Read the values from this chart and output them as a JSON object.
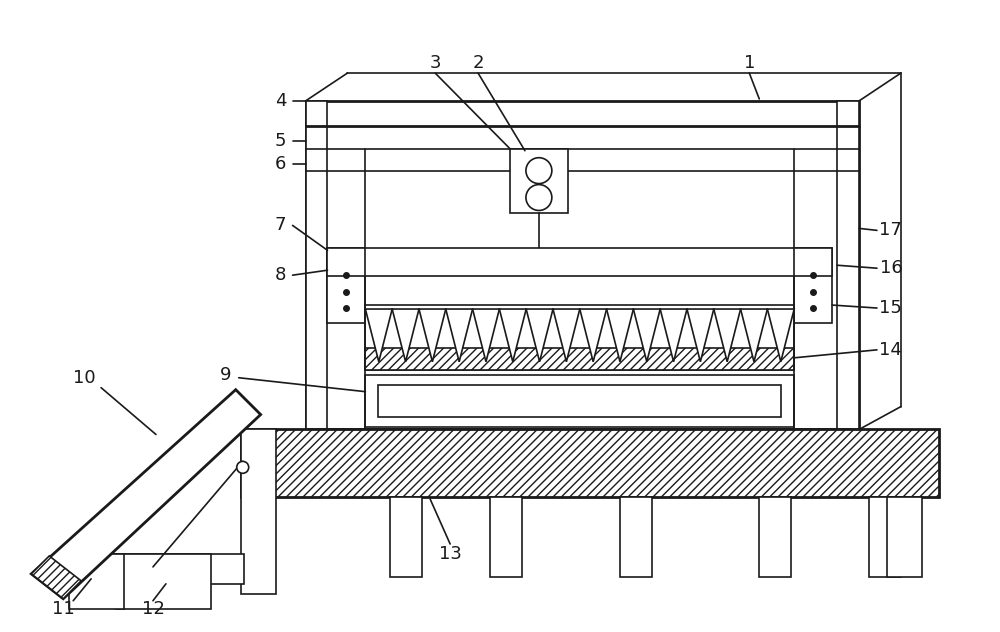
{
  "background_color": "#ffffff",
  "line_color": "#1a1a1a",
  "lw": 1.2,
  "lw2": 2.0,
  "fs": 13
}
